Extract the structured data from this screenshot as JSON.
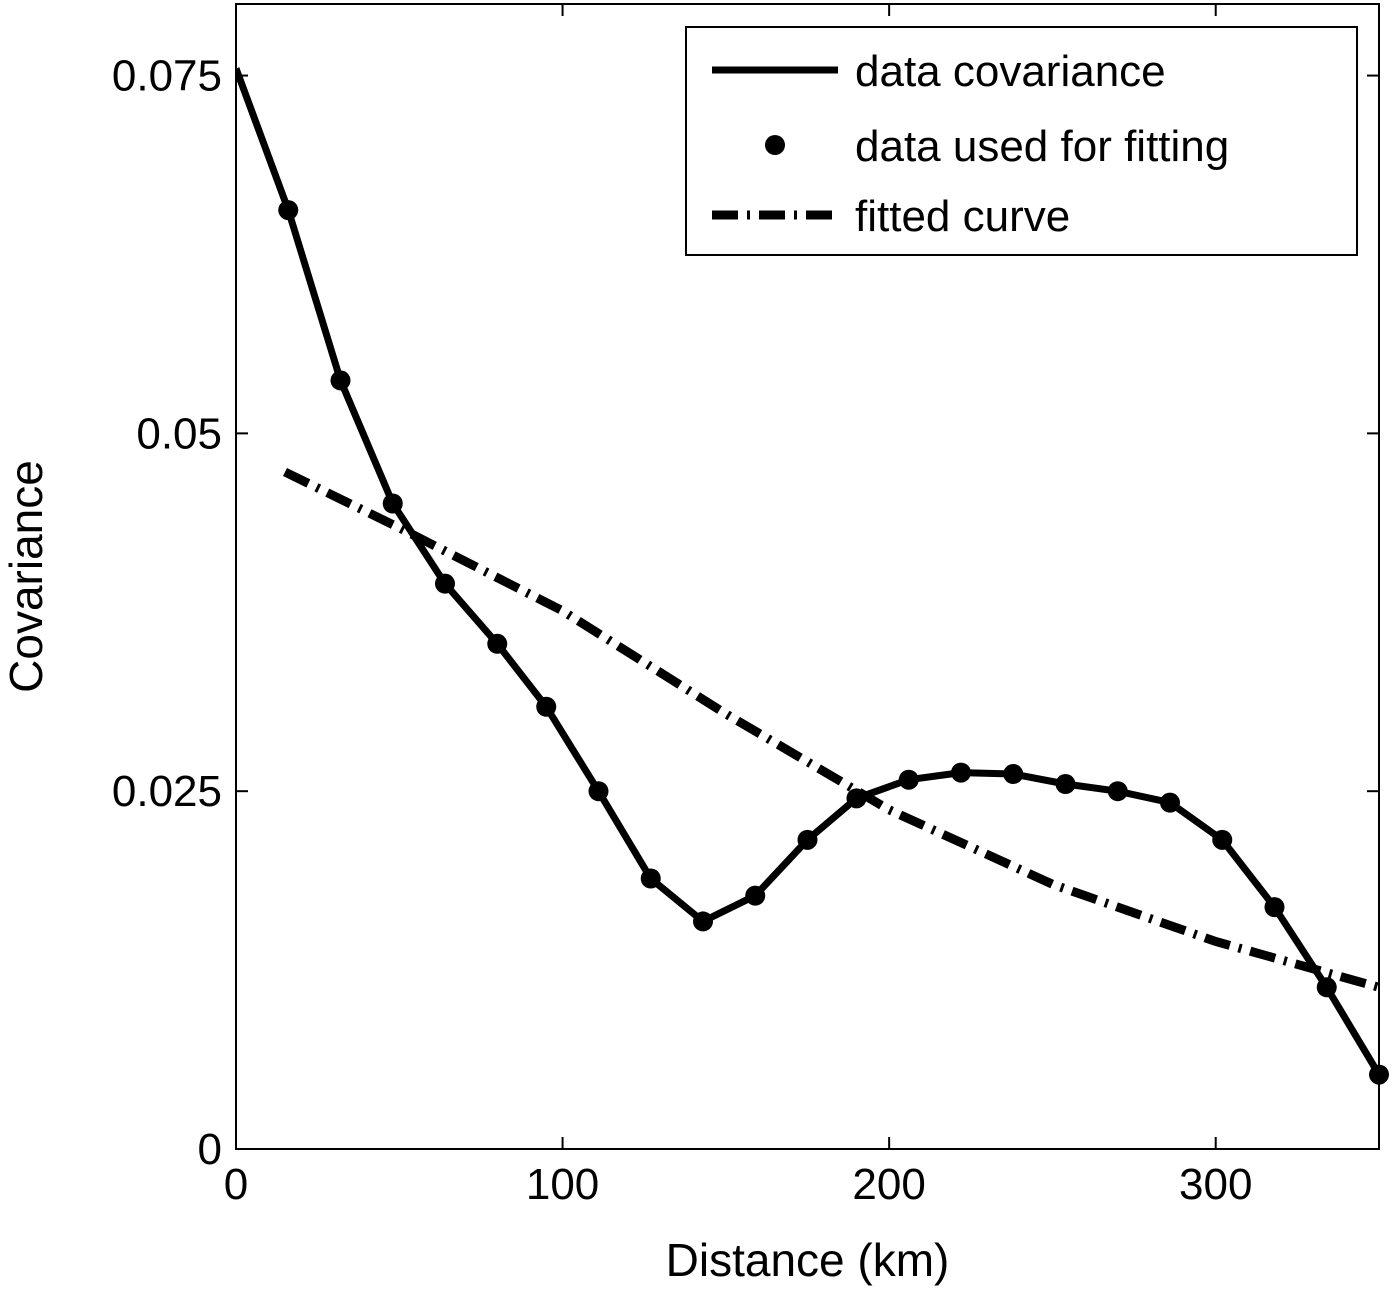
{
  "chart_data": {
    "type": "line",
    "title": "",
    "xlabel": "Distance (km)",
    "ylabel": "Covariance",
    "xlim": [
      0,
      350
    ],
    "ylim": [
      0,
      0.08
    ],
    "x_ticks": [
      0,
      100,
      200,
      300
    ],
    "x_tick_labels": [
      "0",
      "100",
      "200",
      "300"
    ],
    "y_ticks": [
      0,
      0.025,
      0.05,
      0.075
    ],
    "y_tick_labels": [
      "0",
      "0.025",
      "0.05",
      "0.075"
    ],
    "grid": false,
    "legend_position": "top-right",
    "colors": {
      "line": "#000000",
      "background": "#ffffff",
      "axes": "#000000"
    },
    "series": [
      {
        "name": "data covariance",
        "style": "solid-line",
        "x": [
          0,
          16,
          32,
          48,
          64,
          80,
          95,
          111,
          127,
          143,
          159,
          175,
          190,
          206,
          222,
          238,
          254,
          270,
          286,
          302,
          318,
          334,
          350
        ],
        "y": [
          0.0755,
          0.0656,
          0.0537,
          0.0451,
          0.0395,
          0.0353,
          0.0309,
          0.025,
          0.0189,
          0.0159,
          0.0177,
          0.0216,
          0.0245,
          0.0258,
          0.0263,
          0.0262,
          0.0255,
          0.025,
          0.0242,
          0.0216,
          0.0169,
          0.0113,
          0.0052
        ]
      },
      {
        "name": "data used for fitting",
        "style": "markers",
        "x": [
          16,
          32,
          48,
          64,
          80,
          95,
          111,
          127,
          143,
          159,
          175,
          190,
          206,
          222,
          238,
          254,
          270,
          286,
          302,
          318,
          334,
          350
        ],
        "y": [
          0.0656,
          0.0537,
          0.0451,
          0.0395,
          0.0353,
          0.0309,
          0.025,
          0.0189,
          0.0159,
          0.0177,
          0.0216,
          0.0245,
          0.0258,
          0.0263,
          0.0262,
          0.0255,
          0.025,
          0.0242,
          0.0216,
          0.0169,
          0.0113,
          0.0052
        ]
      },
      {
        "name": "fitted curve",
        "style": "dash-dot-line",
        "x": [
          15,
          50,
          100,
          150,
          200,
          250,
          300,
          350
        ],
        "y": [
          0.0473,
          0.0434,
          0.0376,
          0.0304,
          0.0237,
          0.0185,
          0.0145,
          0.0113
        ]
      }
    ]
  }
}
